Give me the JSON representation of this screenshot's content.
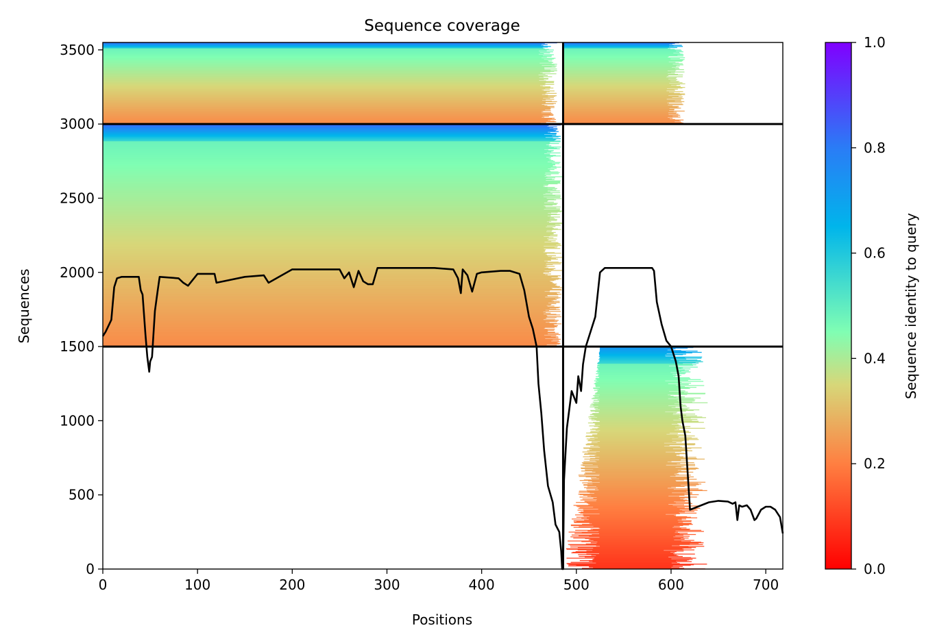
{
  "chart_data": {
    "type": "heatmap",
    "title": "Sequence coverage",
    "xlabel": "Positions",
    "ylabel": "Sequences",
    "xlim": [
      0,
      718
    ],
    "ylim": [
      0,
      3550
    ],
    "xticks": [
      0,
      100,
      200,
      300,
      400,
      500,
      600,
      700
    ],
    "yticks": [
      0,
      500,
      1000,
      1500,
      2000,
      2500,
      3000,
      3500
    ],
    "colorbar": {
      "label": "Sequence identity to query",
      "range": [
        0,
        1
      ],
      "ticks": [
        0.0,
        0.2,
        0.4,
        0.6,
        0.8,
        1.0
      ],
      "tick_labels": [
        "0.0",
        "0.2",
        "0.4",
        "0.6",
        "0.8",
        "1.0"
      ],
      "colormap": "rainbow_r",
      "stops": [
        "#ff0000",
        "#ff7f41",
        "#d7d779",
        "#80feb3",
        "#00b5eb",
        "#2a7cf6",
        "#8000ff"
      ]
    },
    "chain_boundaries": {
      "x": [
        486
      ],
      "y": [
        1500,
        3000
      ]
    },
    "blocks": [
      {
        "name": "chain A only",
        "x": [
          0,
          486
        ],
        "y_range": [
          1500,
          3000
        ],
        "typical_x_extent": [
          0,
          465
        ],
        "identity_top": 0.85,
        "identity_bottom": 0.22
      },
      {
        "name": "chain B only",
        "x": [
          486,
          718
        ],
        "y_range": [
          0,
          1500
        ],
        "typical_x_extent": [
          525,
          590
        ],
        "identity_top": 0.75,
        "identity_bottom": 0.08
      },
      {
        "name": "paired A",
        "x": [
          0,
          486
        ],
        "y_range": [
          3000,
          3550
        ],
        "typical_x_extent": [
          0,
          460
        ],
        "identity_top": 0.85,
        "identity_bottom": 0.22
      },
      {
        "name": "paired B",
        "x": [
          486,
          718
        ],
        "y_range": [
          3000,
          3550
        ],
        "typical_x_extent": [
          486,
          595
        ],
        "identity_top": 0.85,
        "identity_bottom": 0.22
      }
    ],
    "coverage_line": {
      "color": "#000000",
      "x": [
        0,
        3,
        6,
        9,
        12,
        15,
        20,
        30,
        38,
        40,
        42,
        45,
        47,
        49,
        50,
        52,
        55,
        58,
        60,
        80,
        85,
        90,
        100,
        118,
        120,
        150,
        170,
        175,
        200,
        250,
        255,
        260,
        265,
        270,
        275,
        280,
        285,
        290,
        300,
        350,
        370,
        375,
        378,
        380,
        385,
        390,
        395,
        400,
        420,
        425,
        430,
        435,
        440,
        445,
        450,
        454,
        458,
        460,
        463,
        466,
        470,
        475,
        478,
        482,
        484,
        485,
        486,
        487,
        490,
        495,
        500,
        502,
        505,
        507,
        510,
        515,
        520,
        525,
        530,
        560,
        580,
        582,
        585,
        590,
        595,
        600,
        605,
        608,
        610,
        612,
        615,
        620,
        640,
        650,
        660,
        665,
        668,
        670,
        672,
        675,
        680,
        684,
        688,
        690,
        695,
        700,
        705,
        710,
        715,
        718
      ],
      "y": [
        1570,
        1600,
        1640,
        1680,
        1900,
        1960,
        1970,
        1970,
        1970,
        1880,
        1850,
        1580,
        1430,
        1330,
        1400,
        1430,
        1740,
        1880,
        1970,
        1960,
        1930,
        1910,
        1990,
        1990,
        1930,
        1970,
        1980,
        1930,
        2020,
        2020,
        1960,
        2000,
        1900,
        2010,
        1940,
        1920,
        1920,
        2030,
        2030,
        2030,
        2020,
        1960,
        1860,
        2020,
        1980,
        1870,
        1990,
        2000,
        2010,
        2010,
        2010,
        2000,
        1990,
        1880,
        1700,
        1620,
        1500,
        1250,
        1050,
        800,
        560,
        450,
        300,
        250,
        120,
        0,
        0,
        600,
        950,
        1200,
        1120,
        1300,
        1200,
        1380,
        1500,
        1600,
        1700,
        2000,
        2030,
        2030,
        2030,
        2010,
        1800,
        1650,
        1540,
        1500,
        1400,
        1300,
        1100,
        1000,
        900,
        400,
        450,
        460,
        455,
        440,
        450,
        330,
        430,
        420,
        430,
        400,
        330,
        340,
        400,
        420,
        420,
        400,
        350,
        240
      ]
    }
  }
}
